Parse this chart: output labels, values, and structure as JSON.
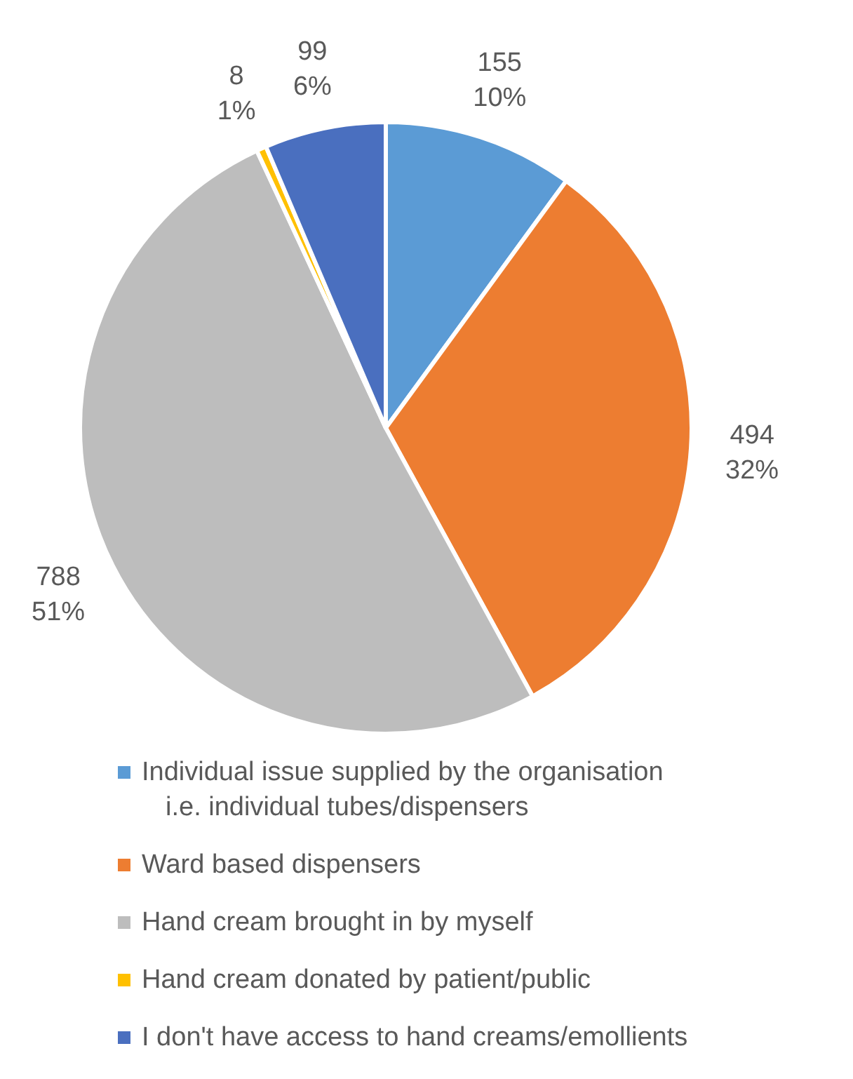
{
  "chart_data": {
    "type": "pie",
    "categories": [
      "Individual issue supplied by the organisation i.e. individual tubes/dispensers",
      "Ward based dispensers",
      "Hand cream brought in by myself",
      "Hand cream donated by patient/public",
      "I don't have access to hand creams/emollients"
    ],
    "values": [
      155,
      494,
      788,
      8,
      99
    ],
    "value_labels": [
      "155\n10%",
      "494\n32%",
      "788\n51%",
      "8\n1%",
      "99\n6%"
    ],
    "colors": [
      "#5b9bd5",
      "#ed7d31",
      "#bdbdbd",
      "#ffc000",
      "#4a6fbf"
    ],
    "legend": "bottom"
  }
}
